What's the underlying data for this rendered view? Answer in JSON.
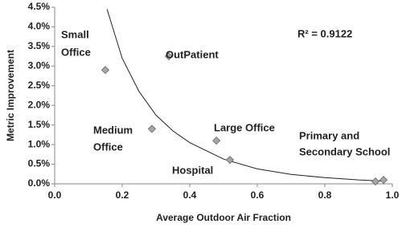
{
  "chart_data": {
    "type": "scatter",
    "x_label": "Average Outdoor Air Fraction",
    "y_label": "Metric Improvement",
    "x": [
      0.15,
      0.338,
      0.288,
      0.479,
      0.519,
      0.95,
      0.974
    ],
    "values": [
      2.9,
      3.25,
      1.4,
      1.1,
      0.61,
      0.06,
      0.1
    ],
    "color": "#a6a6a6",
    "xlim": [
      0,
      1
    ],
    "ylim": [
      0,
      4.5
    ],
    "xticks": [
      {
        "value": 0,
        "label": "0.0"
      },
      0.2,
      0.4,
      0.6,
      0.8,
      {
        "value": 1,
        "label": "1.0"
      }
    ],
    "yticks": [
      {
        "value": 0,
        "label": "0.0%"
      },
      {
        "value": 0.5,
        "label": "0.5%"
      },
      {
        "value": 1,
        "label": "1.0%"
      },
      {
        "value": 1.5,
        "label": "1.5%"
      },
      {
        "value": 2,
        "label": "2.0%"
      },
      {
        "value": 2.5,
        "label": "2.5%"
      },
      {
        "value": 3,
        "label": "3.0%"
      },
      {
        "value": 3.5,
        "label": "3.5%"
      },
      {
        "value": 4,
        "label": "4.0%"
      },
      {
        "value": 4.5,
        "label": "4.5%"
      }
    ],
    "grid": false,
    "trendline": {
      "x": [
        0.155,
        0.2,
        0.25,
        0.3,
        0.35,
        0.4,
        0.5,
        0.6,
        0.7,
        0.8,
        0.9,
        0.98
      ],
      "y": [
        4.45,
        3.2,
        2.35,
        1.75,
        1.35,
        1.05,
        0.63,
        0.38,
        0.24,
        0.16,
        0.1,
        0.07
      ]
    },
    "annotations": [
      "Small",
      "Office",
      "OutPatient",
      "Medium",
      "Office",
      "Large Office",
      "Primary and",
      "Secondary School",
      "Hospital",
      "R² = 0.9122"
    ]
  }
}
